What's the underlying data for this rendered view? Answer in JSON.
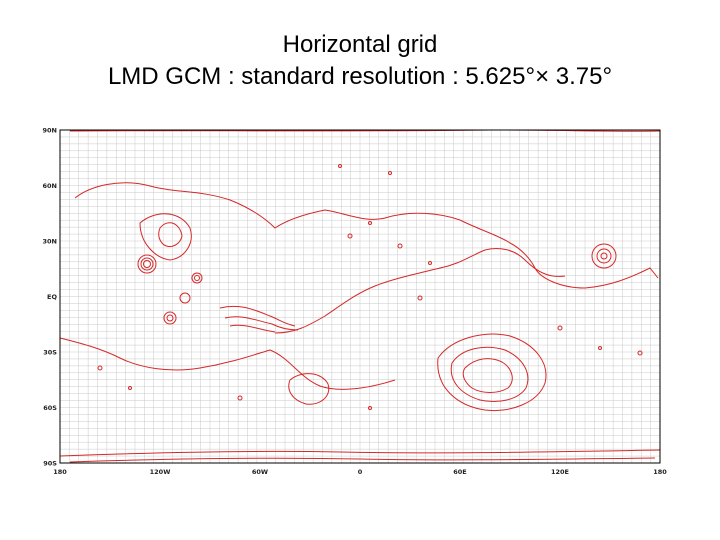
{
  "slide": {
    "title_line1": "Horizontal grid",
    "title_line2": "LMD GCM : standard resolution : 5.625°× 3.75°"
  },
  "map": {
    "projection": "equirectangular",
    "grid_dlon": 5.625,
    "grid_dlat": 3.75,
    "lat_labels": [
      "90N",
      "60N",
      "30N",
      "EQ",
      "30S",
      "60S",
      "90S"
    ],
    "lon_labels": [
      "180",
      "120W",
      "60W",
      "0",
      "60E",
      "120E",
      "180"
    ],
    "colors": {
      "grid": "#c9c9c9",
      "contour": "#d62828",
      "frame": "#000000"
    }
  }
}
